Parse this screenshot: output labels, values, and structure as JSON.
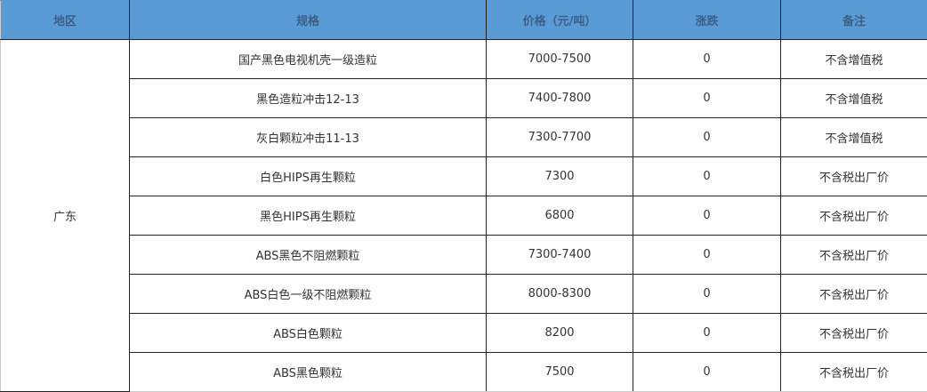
{
  "headers": [
    "地区",
    "规格",
    "价格（元/吨）",
    "涨跌",
    "备注"
  ],
  "region": "广东",
  "rows": [
    {
      "spec": "国产黑色电视机壳一级造粒",
      "price": "7000-7500",
      "change": "0",
      "note": "不含增值税"
    },
    {
      "spec": "黑色造粒冲击12-13",
      "price": "7400-7800",
      "change": "0",
      "note": "不含增值税"
    },
    {
      "spec": "灰白颗粒冲击11-13",
      "price": "7300-7700",
      "change": "0",
      "note": "不含增值税"
    },
    {
      "spec": "白色HIPS再生颗粒",
      "price": "7300",
      "change": "0",
      "note": "不含税出厂价"
    },
    {
      "spec": "黑色HIPS再生颗粒",
      "price": "6800",
      "change": "0",
      "note": "不含税出厂价"
    },
    {
      "spec": "ABS黑色不阻燃颗粒",
      "price": "7300-7400",
      "change": "0",
      "note": "不含税出厂价"
    },
    {
      "spec": "ABS白色一级不阻燃颗粒",
      "price": "8000-8300",
      "change": "0",
      "note": "不含税出厂价"
    },
    {
      "spec": "ABS白色颗粒",
      "price": "8200",
      "change": "0",
      "note": "不含税出厂价"
    },
    {
      "spec": "ABS黑色颗粒",
      "price": "7500",
      "change": "0",
      "note": "不含税出厂价"
    }
  ],
  "colors": {
    "header_bg": "#5b9bd5",
    "header_text": "#3d5f87"
  }
}
